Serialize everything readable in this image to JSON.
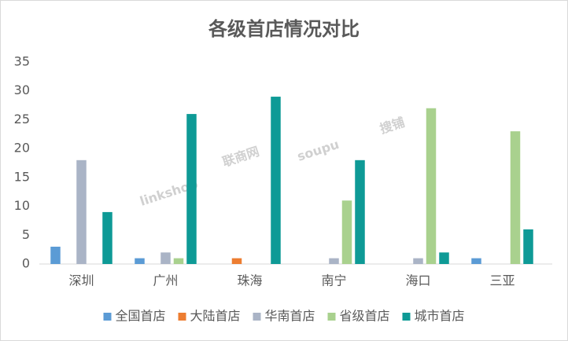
{
  "chart_data": {
    "type": "bar",
    "title": "各级首店情况对比",
    "categories": [
      "深圳",
      "广州",
      "珠海",
      "南宁",
      "海口",
      "三亚"
    ],
    "series": [
      {
        "name": "全国首店",
        "color": "#5b9bd5",
        "values": [
          3,
          1,
          0,
          0,
          0,
          1
        ]
      },
      {
        "name": "大陆首店",
        "color": "#ed7d31",
        "values": [
          0,
          0,
          1,
          0,
          0,
          0
        ]
      },
      {
        "name": "华南首店",
        "color": "#aab4c6",
        "values": [
          18,
          2,
          0,
          1,
          1,
          0
        ]
      },
      {
        "name": "省级首店",
        "color": "#a9d18e",
        "values": [
          0,
          1,
          0,
          11,
          27,
          23
        ]
      },
      {
        "name": "城市首店",
        "color": "#0e9a96",
        "values": [
          9,
          26,
          29,
          18,
          2,
          6
        ]
      }
    ],
    "ylim": [
      0,
      35
    ],
    "yticks": [
      0,
      5,
      10,
      15,
      20,
      25,
      30,
      35
    ],
    "grid": false,
    "legend": "bottom",
    "watermarks": [
      "linkshop",
      "联商网",
      "soupu",
      "搜铺"
    ]
  }
}
